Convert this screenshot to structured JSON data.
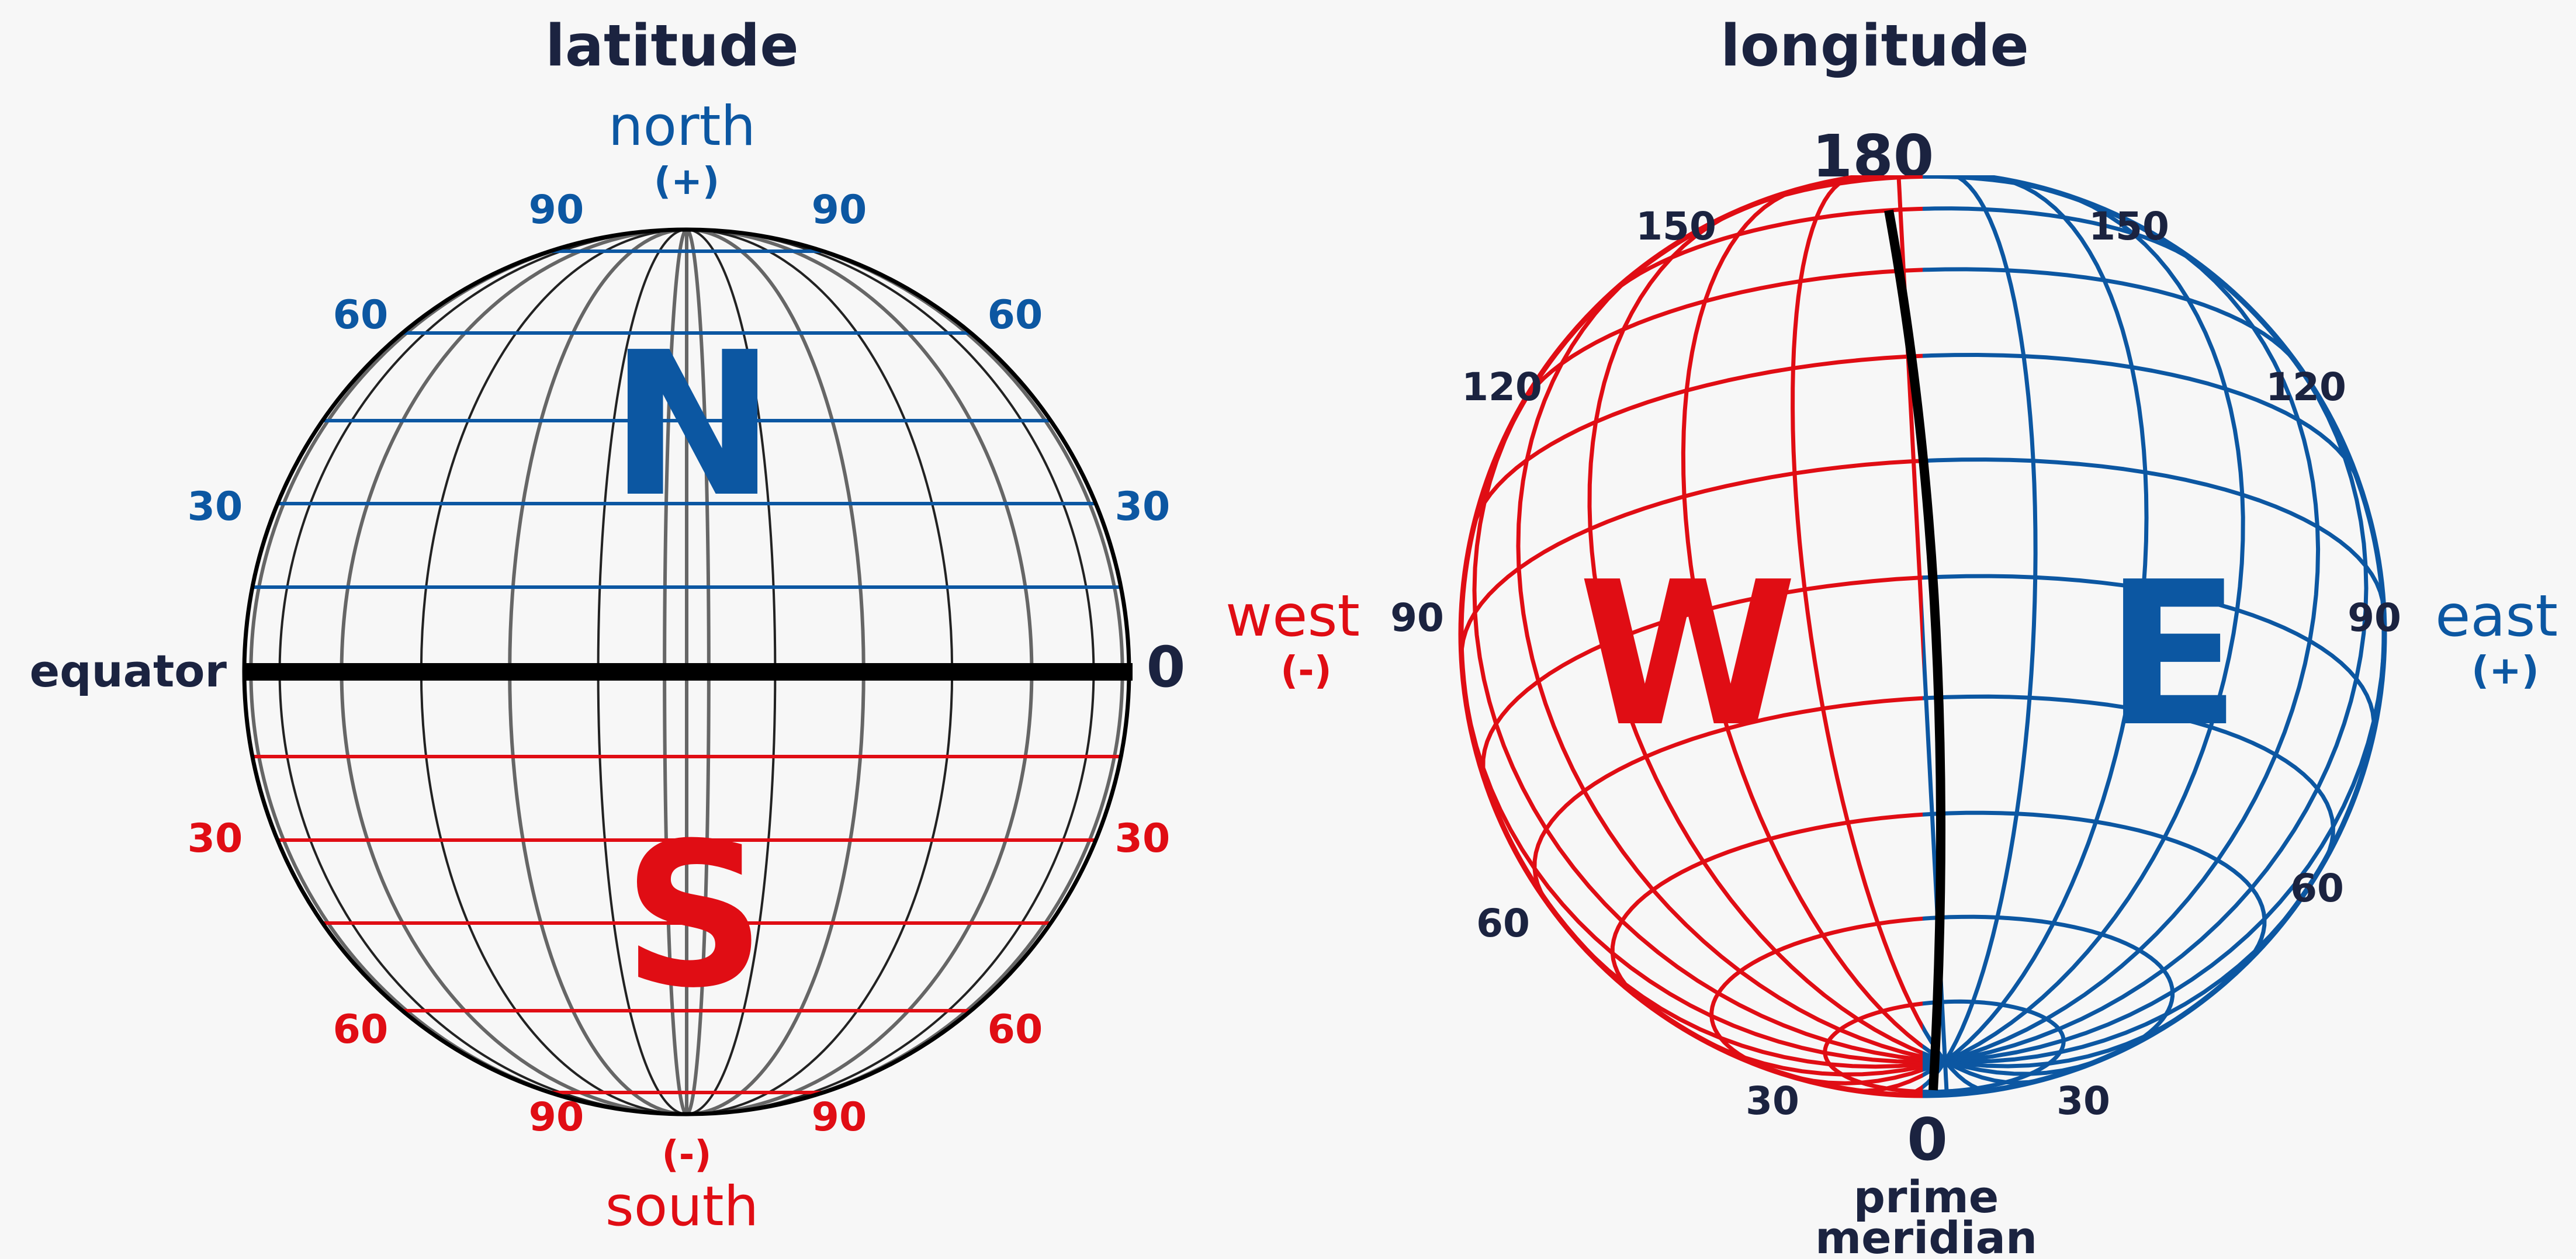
{
  "latitude": {
    "title": "latitude",
    "north_label": "north",
    "north_sign": "(+)",
    "south_label": "south",
    "south_sign": "(-)",
    "equator_label": "equator",
    "equator_value": "0",
    "north_letter": "N",
    "south_letter": "S",
    "north_ticks": [
      "30",
      "60",
      "90"
    ],
    "south_ticks": [
      "30",
      "60",
      "90"
    ]
  },
  "longitude": {
    "title": "longitude",
    "west_label": "west",
    "west_sign": "(-)",
    "east_label": "east",
    "east_sign": "(+)",
    "west_letter": "W",
    "east_letter": "E",
    "top_value": "180",
    "bottom_value": "0",
    "prime_meridian_label": [
      "prime",
      "meridian"
    ],
    "west_ticks": [
      "30",
      "60",
      "90",
      "120",
      "150"
    ],
    "east_ticks": [
      "30",
      "60",
      "90",
      "120",
      "150"
    ]
  },
  "colors": {
    "navy": "#1b2340",
    "north_east_blue": "#0c57a2",
    "south_west_red": "#e00d14",
    "meridian_gray": "#666666",
    "equator_black": "#000000"
  }
}
